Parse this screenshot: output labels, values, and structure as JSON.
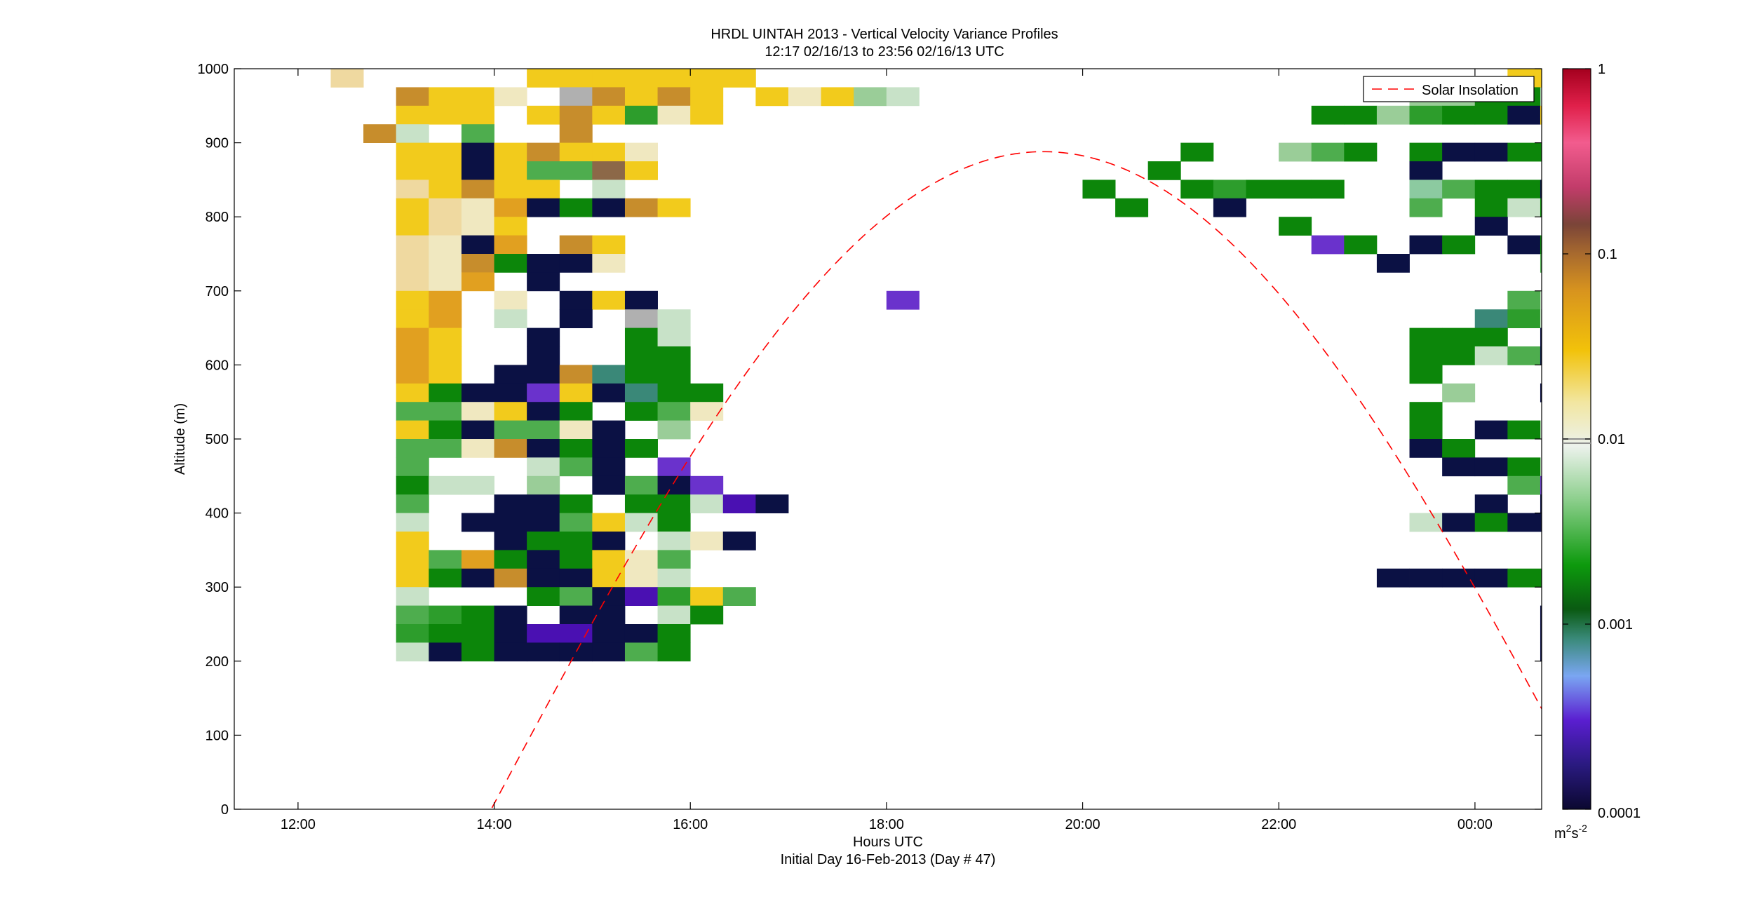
{
  "chart_data": {
    "type": "heatmap",
    "title": "HRDL UINTAH 2013 - Vertical Velocity Variance Profiles",
    "subtitle": "12:17 02/16/13 to 23:56 02/16/13  UTC",
    "xlabel": "Hours UTC",
    "xlabel2": "Initial Day 16-Feb-2013 (Day # 47)",
    "ylabel": "Altitude (m)",
    "xlim": [
      11.35,
      24.68
    ],
    "ylim": [
      0,
      1000
    ],
    "grid": false,
    "x_ticks": [
      12,
      14,
      16,
      18,
      20,
      22,
      24
    ],
    "x_tick_labels": [
      "12:00",
      "14:00",
      "16:00",
      "18:00",
      "20:00",
      "22:00",
      "00:00"
    ],
    "y_ticks": [
      0,
      100,
      200,
      300,
      400,
      500,
      600,
      700,
      800,
      900,
      1000
    ],
    "y_tick_labels": [
      "0",
      "100",
      "200",
      "300",
      "400",
      "500",
      "600",
      "700",
      "800",
      "900",
      "1000"
    ],
    "legend": {
      "position": "top-right",
      "entries": [
        {
          "name": "Solar Insolation",
          "style": "dashed",
          "color": "#ff0000"
        }
      ]
    },
    "colorbar": {
      "scale": "log",
      "range": [
        0.0001,
        1
      ],
      "ticks": [
        0.0001,
        0.001,
        0.01,
        0.1,
        1
      ],
      "tick_labels": [
        "0.0001",
        "0.001",
        "0.01",
        "0.1",
        "1"
      ],
      "unit_label": "m²s⁻²",
      "unit_base": "m",
      "unit_exp1": "2",
      "unit_mid": "s",
      "unit_exp2": "-2"
    },
    "cells": {
      "x_start": 12.3333,
      "x_step": 0.3333,
      "y_top": 1000,
      "y_step": 25,
      "palette": {
        "A": "#efd9a0",
        "B": "#f2cb1c",
        "C": "#e1a020",
        "D": "#c78d2c",
        "E": "#8c6848",
        "F": "#a8703c",
        "G": "#f0e8c0",
        "H": "#ecebd6",
        "I": "#0b1144",
        "J": "#0c860a",
        "K": "#2d9d2c",
        "L": "#4ead4e",
        "M": "#9acd98",
        "N": "#c8e2c8",
        "O": "#6a32cc",
        "P": "#4a10b2",
        "Q": "#7ba4f4",
        "R": "#3a8878",
        "S": "#0b5f16",
        "T": "#b0b0b0",
        "U": "#8ccaa0",
        "V": "#607e2b",
        "W": "#5c93dc",
        "X": "#876048"
      },
      "rows": [
        "A.....BBBBBBB.......................BBB.........BBBB.....",
        "..DBBG.TDBDB.BGBMN...............MMJJ.LB.KJNL......I.LPJI.",
        "..BBB.BDBKGB..................JJMKJJIBKIJNKIIIJIKJI..OJ...",
        ".DN.L..D..................................O..I.PRJO......",
        "..BBIBDBBG................J..MLJ.JIIJJIJMIOJIJIJIJJ..IPBA..",
        "..BBIBLLEB...............J.......I.....J.........BJL......",
        "..ABDBB.N..............J..JKJJJ..ULJJI.IIJJJI.II.M.JN.NK...",
        "..BAGCIJIDB.............J..I.....L.JNJI....L.LK..I.I.LBJJ..",
        "..BAGB.......................J.....I.......J..IJIJOL.P.....",
        "..AGIC.DB.....................OJ.IJ.IJ..J.J..L.JJIJBJBO....",
        "..AGDJIIG.......................I....LIIJMJ..JJJ..IIJBBOIIM.",
        "..AGC.I..............................................IJBN..",
        "..BC.G.IBI.......O..................L......KIJJIJ..IJJB.IJ.",
        "..BC.N.I.TN........................RKNJNIIJR..JIJ.I....IIJ.",
        "..CB..I..JN......................JJJ.IRII.NJI.LOIJJ..BIMJ.",
        "..CB..I..JJ......................JJNLIMJJJ.JJJ..I.RJ.MLI...",
        "..CB.IIDRJJ......................J....I.M.N.I...JJ.I..I.JJ.",
        "..BJIIOBIRJJ......................M..I.........N..IJJNIM..",
        "..LLGBIJ.JLG.....................J.....L....N.LJII.I.J.JJ..",
        "..BJILLGI.M......................J.IJ.......L...II.I..MNI..",
        "..LLGDIJIJ.......................IJ...J.I.I.J.J...II....J.",
        "..L...NLI.O.......................IIJ.IIO.LJ.MN..IILJNIMNNI",
        "..JNN.M.ILIO........................LO.J..NI.Q...QIJII.OIJQ",
        "..L..IIJ.JJNPI.....................I.IIIJI..IOIJ..NN.IQ.N..",
        "..N.IIILBNJ......................NIJIIIIIIIIN..IRJIJ.IIIIN.",
        "..B..IJJI.NGI.........................I....IIJ.I...JI.IJ.II",
        "..BLCJIJBGL...........................R.JLL.....M.K..I..MM",
        "..BJIDIIBGN.....................IIIIJJIIJRJ.IOP.J.IJ..JII..",
        "..N...JLIPKBL..........................I..KLIJ..I..P...JJ.",
        "..LKJI.II.NJ.........................IJ..JIII....JJPJIJ..J",
        "..KJJIPPIIJ..........................IJ...IIIJ.....JIII.IJ",
        "..NIJIIIILJ..........................IIIIJ.IIII.IJJLIIIIJJ"
      ]
    }
  }
}
